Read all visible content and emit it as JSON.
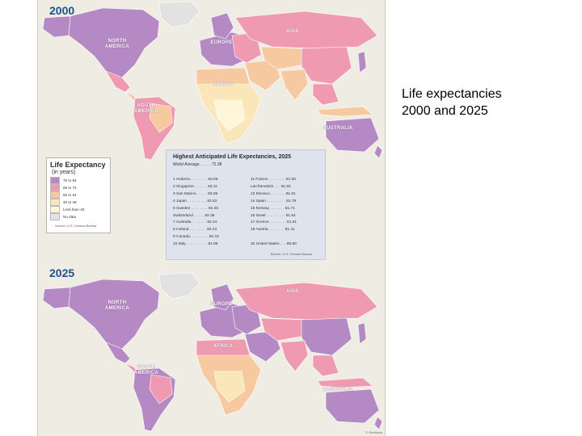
{
  "caption": {
    "line1": "Life expectancies",
    "line2": "2000 and 2025"
  },
  "maps": {
    "map2000": {
      "year": "2000",
      "labels": {
        "north_america": "NORTH AMERICA",
        "europe": "EUROPE",
        "asia": "ASIA",
        "africa": "AFRICA",
        "south_america": "SOUTH AMERICA",
        "australia": "AUSTRALIA"
      }
    },
    "map2025": {
      "year": "2025",
      "labels": {
        "north_america": "NORTH AMERICA",
        "europe": "EUROPE",
        "asia": "ASIA",
        "africa": "AFRICA",
        "south_america": "SOUTH AMERICA",
        "australia": "AUSTRALIA"
      }
    }
  },
  "colors": {
    "c75": "#b489c4",
    "c65": "#ef9ab0",
    "c50": "#f7c9a0",
    "c40": "#fae6b8",
    "clt40": "#fdf6d8",
    "nodata": "#e2e2e2",
    "ocean": "#efece4"
  },
  "legend": {
    "title": "Life Expectancy",
    "subtitle": "(in years)",
    "items": [
      {
        "label": "75 to 84",
        "color": "#b489c4"
      },
      {
        "label": "65 to 74",
        "color": "#ef9ab0"
      },
      {
        "label": "50 to 64",
        "color": "#f7c9a0"
      },
      {
        "label": "40 to 49",
        "color": "#fae6b8"
      },
      {
        "label": "Less than 40",
        "color": "#fdf6d8"
      },
      {
        "label": "No data",
        "color": "#e2e2e2"
      }
    ],
    "source": "Source: U.S. Census Bureau"
  },
  "table": {
    "title": "Highest Anticipated Life Expectancies, 2025",
    "world_average": "World Average . . . . . 72.38",
    "left": [
      "1  Andorra . . . . . . . . 83.68",
      "2  Singapore . . . . . . 83.11",
      "3  San Marino . . . . . 83.09",
      "4  Japan . . . . . . . . . 82.82",
      "5  Sweden . . . . . . . . 82.35",
      "    Switzerland . . . . . 82.35",
      "7  Australia . . . . . . . 82.24",
      "8  Iceland . . . . . . . . 82.23",
      "9  Canada. . . . . . . . . 82.18",
      "10  Italy . . . . . . . . . . 81.89"
    ],
    "right": [
      "11  France . . . . . . . . 81.83",
      "     Liechtenstein . . . 81.83",
      "13  Monaco . . . . . . . 81.81",
      "14  Spain . . . . . . . . . 81.78",
      "15  Norway . . . . . . . 81.71",
      "16  Israel . . . . . . . . . 81.64",
      "17  Greece . . . . . . . . 81.51",
      "18  Austria. . . . . . . . 81.41",
      "",
      "32  United States . . . 80.50"
    ],
    "source": "Source: U.S. Census Bureau"
  },
  "credit": "© GeoNova"
}
